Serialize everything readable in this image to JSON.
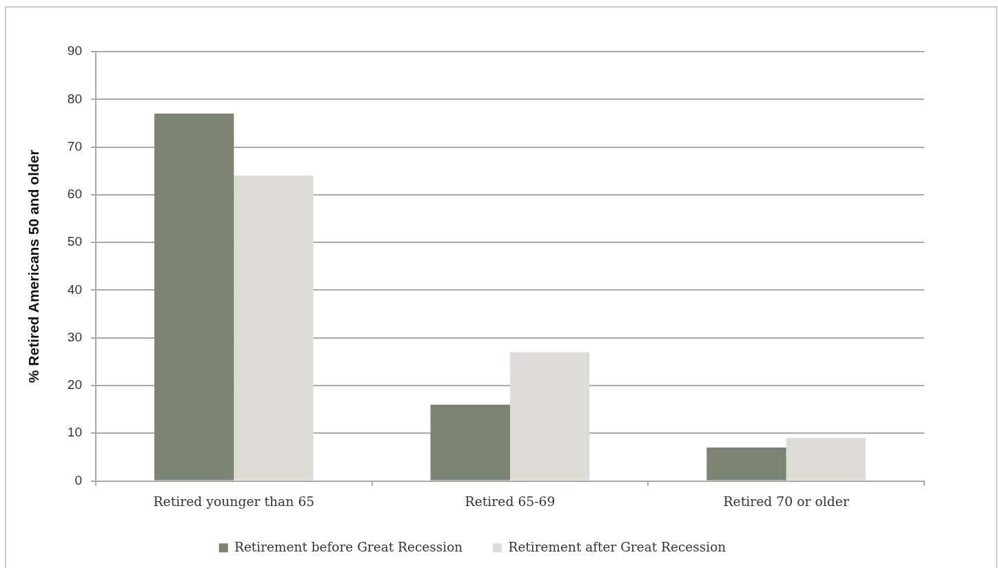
{
  "chart_data": {
    "type": "bar",
    "ylabel": "% Retired Americans 50 and older",
    "categories": [
      "Retired younger than 65",
      "Retired 65-69",
      "Retired 70 or older"
    ],
    "series": [
      {
        "name": "Retirement before Great Recession",
        "color": "#7a8470",
        "values": [
          77,
          16,
          7
        ]
      },
      {
        "name": "Retirement after Great Recession",
        "color": "#dfdcd8",
        "values": [
          64,
          27,
          9
        ]
      }
    ],
    "ylim": [
      0,
      90
    ],
    "yticks": [
      0,
      10,
      20,
      30,
      40,
      50,
      60,
      70,
      80,
      90
    ],
    "grid": "y",
    "legend": "bottom"
  }
}
